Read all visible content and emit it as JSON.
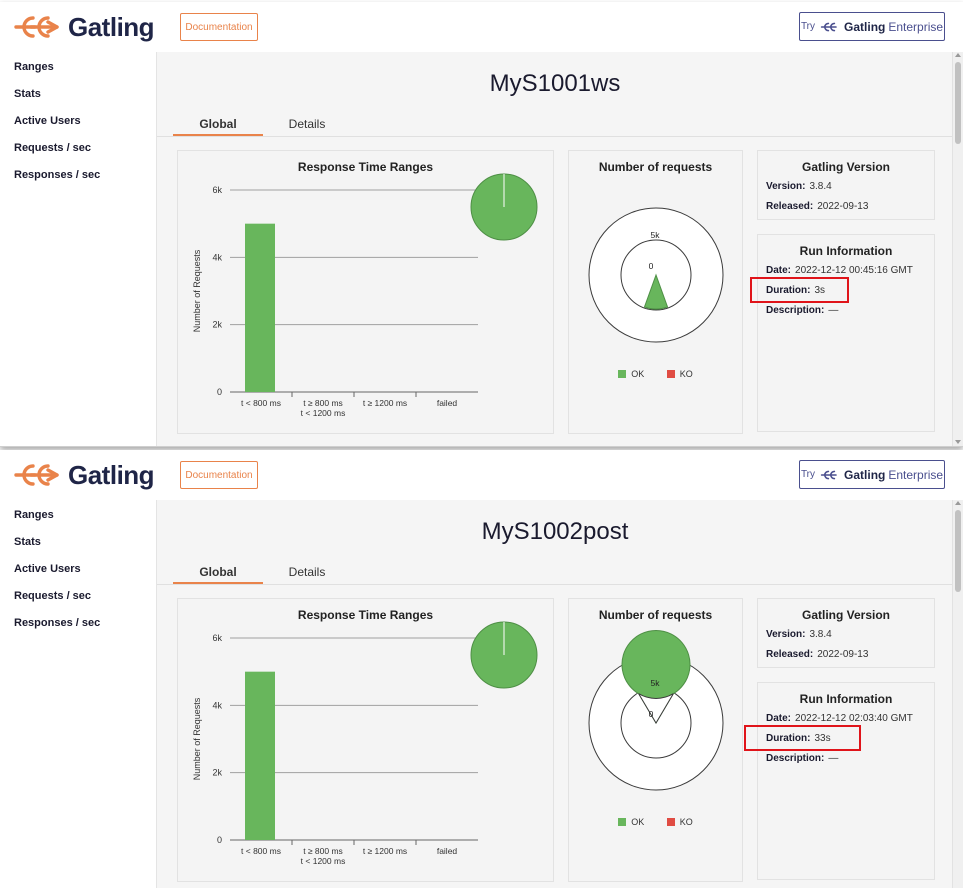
{
  "colors": {
    "accent": "#e9834a",
    "ok": "#68b65c",
    "ko": "#e04c43",
    "brand": "#1f2547",
    "highlight": "#e0141a"
  },
  "app": {
    "logo_text": "Gatling",
    "doc_label": "Documentation",
    "enterprise": {
      "try": "Try",
      "name": "Gatling",
      "suffix": "Enterprise"
    }
  },
  "sidebar": {
    "items": [
      {
        "label": "Ranges"
      },
      {
        "label": "Stats"
      },
      {
        "label": "Active Users"
      },
      {
        "label": "Requests / sec"
      },
      {
        "label": "Responses / sec"
      }
    ]
  },
  "tabs": {
    "global": "Global",
    "details": "Details"
  },
  "cards": {
    "ranges_title": "Response Time Ranges",
    "requests_title": "Number of requests",
    "version_title": "Gatling Version",
    "run_title": "Run Information"
  },
  "labels": {
    "version": "Version:",
    "released": "Released:",
    "date": "Date:",
    "duration": "Duration:",
    "description": "Description:"
  },
  "legend": {
    "ok": "OK",
    "ko": "KO"
  },
  "reports": [
    {
      "title": "MyS1001ws",
      "version": "3.8.4",
      "released": "2022-09-13",
      "date": "2022-12-12 00:45:16 GMT",
      "duration": "3s",
      "description": "—"
    },
    {
      "title": "MyS1002post",
      "version": "3.8.4",
      "released": "2022-09-13",
      "date": "2022-12-12 02:03:40 GMT",
      "duration": "33s",
      "description": "—"
    }
  ],
  "chart_data": [
    {
      "type": "bar",
      "title": "Response Time Ranges",
      "ylabel": "Number of Requests",
      "categories": [
        "t < 800 ms",
        "t ≥ 800 ms\nt < 1200 ms",
        "t ≥ 1200 ms",
        "failed"
      ],
      "values": [
        5000,
        0,
        0,
        0
      ],
      "ylim": [
        0,
        6000
      ],
      "yticks": [
        "0",
        "2k",
        "4k",
        "6k"
      ],
      "pie": {
        "slices": [
          {
            "label": "t < 800 ms",
            "value": 5000
          }
        ]
      }
    },
    {
      "type": "pie",
      "title": "Number of requests",
      "series": [
        {
          "name": "OK",
          "value": 5000
        },
        {
          "name": "KO",
          "value": 0
        }
      ],
      "gauge_ticks": [
        "0",
        "5k"
      ],
      "gauge_fill": 0.11
    },
    {
      "type": "bar",
      "title": "Response Time Ranges",
      "ylabel": "Number of Requests",
      "categories": [
        "t < 800 ms",
        "t ≥ 800 ms\nt < 1200 ms",
        "t ≥ 1200 ms",
        "failed"
      ],
      "values": [
        5000,
        0,
        0,
        0
      ],
      "ylim": [
        0,
        6000
      ],
      "yticks": [
        "0",
        "2k",
        "4k",
        "6k"
      ],
      "pie": {
        "slices": [
          {
            "label": "t < 800 ms",
            "value": 5000
          }
        ]
      }
    },
    {
      "type": "pie",
      "title": "Number of requests",
      "series": [
        {
          "name": "OK",
          "value": 5000
        },
        {
          "name": "KO",
          "value": 0
        }
      ],
      "gauge_ticks": [
        "0",
        "5k"
      ],
      "gauge_fill": 0.83
    }
  ]
}
